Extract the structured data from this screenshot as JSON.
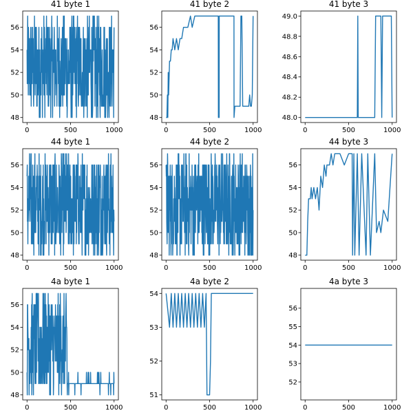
{
  "figure": {
    "series_color": "#1f77b4"
  },
  "chart_data": [
    {
      "type": "line",
      "title": "41 byte 1",
      "xlabel": "",
      "ylabel": "",
      "xlim": [
        0,
        1000
      ],
      "ylim": [
        48,
        57
      ],
      "xticks": [
        0,
        500,
        1000
      ],
      "yticks": [
        48,
        50,
        52,
        54,
        56
      ],
      "pattern": "noise",
      "value_range": [
        48,
        57
      ]
    },
    {
      "type": "line",
      "title": "41 byte 2",
      "xlabel": "",
      "ylabel": "",
      "xlim": [
        0,
        1000
      ],
      "ylim": [
        48,
        57
      ],
      "xticks": [
        0,
        500,
        1000
      ],
      "yticks": [
        48,
        50,
        52,
        54,
        56
      ],
      "x": [
        0,
        10,
        15,
        20,
        25,
        30,
        40,
        50,
        60,
        70,
        80,
        100,
        120,
        140,
        160,
        180,
        200,
        230,
        250,
        280,
        300,
        330,
        350,
        400,
        450,
        500,
        560,
        600,
        601,
        610,
        611,
        650,
        700,
        760,
        780,
        781,
        790,
        800,
        820,
        850,
        860,
        870,
        880,
        890,
        900,
        950,
        960,
        970,
        980,
        990,
        1000
      ],
      "y": [
        48,
        48,
        50,
        48,
        52,
        50,
        53,
        53,
        54,
        54,
        55,
        54,
        55,
        54,
        55,
        55,
        56,
        56,
        56,
        57,
        56,
        57,
        57,
        57,
        57,
        57,
        57,
        57,
        48,
        48,
        57,
        57,
        57,
        57,
        57,
        48,
        49,
        49,
        49,
        49,
        57,
        57,
        49,
        49,
        49,
        49,
        50,
        49,
        49,
        50,
        57
      ]
    },
    {
      "type": "line",
      "title": "41 byte 3",
      "xlabel": "",
      "ylabel": "",
      "xlim": [
        0,
        1000
      ],
      "ylim": [
        48,
        49
      ],
      "xticks": [
        0,
        500,
        1000
      ],
      "yticks": [
        48.0,
        48.2,
        48.4,
        48.6,
        48.8,
        49.0
      ],
      "x": [
        0,
        600,
        605,
        610,
        800,
        810,
        870,
        880,
        890,
        990,
        1000
      ],
      "y": [
        48,
        48,
        49,
        48,
        48,
        49,
        49,
        48,
        49,
        49,
        48
      ]
    },
    {
      "type": "line",
      "title": "44 byte 1",
      "xlabel": "",
      "ylabel": "",
      "xlim": [
        0,
        1000
      ],
      "ylim": [
        48,
        57
      ],
      "xticks": [
        0,
        500,
        1000
      ],
      "yticks": [
        48,
        50,
        52,
        54,
        56
      ],
      "pattern": "noise",
      "value_range": [
        48,
        57
      ]
    },
    {
      "type": "line",
      "title": "44 byte 2",
      "xlabel": "",
      "ylabel": "",
      "xlim": [
        0,
        1000
      ],
      "ylim": [
        48,
        57
      ],
      "xticks": [
        0,
        500,
        1000
      ],
      "yticks": [
        48,
        50,
        52,
        54,
        56
      ],
      "pattern": "noise",
      "value_range": [
        48,
        57
      ]
    },
    {
      "type": "line",
      "title": "44 byte 3",
      "xlabel": "",
      "ylabel": "",
      "xlim": [
        0,
        1000
      ],
      "ylim": [
        48,
        57
      ],
      "xticks": [
        0,
        500,
        1000
      ],
      "yticks": [
        48,
        50,
        52,
        54,
        56
      ],
      "x": [
        0,
        20,
        30,
        40,
        60,
        70,
        80,
        100,
        120,
        140,
        160,
        180,
        200,
        220,
        240,
        250,
        280,
        300,
        320,
        340,
        360,
        380,
        400,
        450,
        500,
        540,
        545,
        560,
        570,
        600,
        620,
        650,
        700,
        720,
        750,
        800,
        820,
        850,
        870,
        900,
        950,
        1000
      ],
      "y": [
        48,
        48,
        51,
        53,
        53,
        54,
        53,
        54,
        53,
        54,
        52,
        55,
        54,
        56,
        55,
        56,
        56,
        57,
        56,
        57,
        57,
        57,
        57,
        56,
        57,
        57,
        48,
        57,
        48,
        57,
        48,
        57,
        48,
        57,
        48,
        57,
        50,
        51,
        50,
        52,
        51,
        57
      ]
    },
    {
      "type": "line",
      "title": "4a byte 1",
      "xlabel": "",
      "ylabel": "",
      "xlim": [
        0,
        1000
      ],
      "ylim": [
        48,
        57
      ],
      "xticks": [
        0,
        500,
        1000
      ],
      "yticks": [
        48,
        50,
        52,
        54,
        56
      ],
      "pattern": "noise_then_low",
      "value_range": [
        48,
        57
      ],
      "switch_x": 460,
      "low_range": [
        48,
        50
      ]
    },
    {
      "type": "line",
      "title": "4a byte 2",
      "xlabel": "",
      "ylabel": "",
      "xlim": [
        0,
        1000
      ],
      "ylim": [
        51,
        54
      ],
      "xticks": [
        0,
        500,
        1000
      ],
      "yticks": [
        51,
        52,
        53,
        54
      ],
      "x": [
        0,
        40,
        60,
        80,
        100,
        120,
        140,
        160,
        180,
        200,
        220,
        240,
        260,
        280,
        300,
        320,
        340,
        360,
        380,
        400,
        420,
        440,
        460,
        470,
        500,
        510,
        515,
        520,
        540,
        1000
      ],
      "y": [
        54,
        53,
        54,
        53,
        54,
        53,
        54,
        53,
        54,
        53,
        54,
        53,
        54,
        53,
        54,
        53,
        54,
        53,
        54,
        53,
        54,
        53,
        54,
        51,
        51,
        52,
        53,
        54,
        54,
        54
      ]
    },
    {
      "type": "line",
      "title": "4a byte 3",
      "xlabel": "",
      "ylabel": "",
      "xlim": [
        0,
        1000
      ],
      "ylim": [
        51.3,
        56.8
      ],
      "xticks": [
        0,
        500,
        1000
      ],
      "yticks": [
        52,
        53,
        54,
        55,
        56
      ],
      "x": [
        0,
        1000
      ],
      "y": [
        54,
        54
      ]
    }
  ]
}
